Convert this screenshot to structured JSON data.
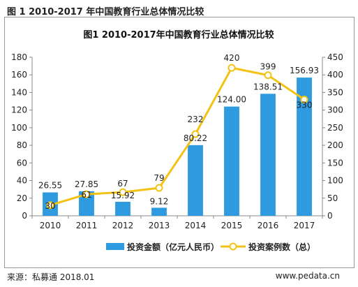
{
  "figure_title": "图 1 2010-2017 年中国教育行业总体情况比较",
  "source": "来源：私募通 2018.01",
  "site": "www.pedata.cn",
  "chart_data": {
    "type": "bar",
    "title": "图1 2010-2017年中国教育行业总体情况比较",
    "categories": [
      "2010",
      "2011",
      "2012",
      "2013",
      "2014",
      "2015",
      "2016",
      "2017"
    ],
    "series": [
      {
        "name": "投资金额（亿元人民币）",
        "type": "bar",
        "axis": "left",
        "color": "#2e9be0",
        "values": [
          26.55,
          27.85,
          15.92,
          9.12,
          80.22,
          124.0,
          138.51,
          156.93
        ],
        "labels": [
          "26.55",
          "27.85",
          "15.92",
          "9.12",
          "80.22",
          "124.00",
          "138.51",
          "156.93"
        ]
      },
      {
        "name": "投资案例数（总）",
        "type": "line",
        "axis": "right",
        "color": "#f2c314",
        "values": [
          30,
          61,
          67,
          79,
          232,
          420,
          399,
          330
        ],
        "labels": [
          "30",
          "61",
          "67",
          "79",
          "232",
          "420",
          "399",
          "330"
        ]
      }
    ],
    "y_left": {
      "min": 0,
      "max": 180,
      "ticks": [
        "0",
        "20",
        "40",
        "60",
        "80",
        "100",
        "120",
        "140",
        "160",
        "180"
      ]
    },
    "y_right": {
      "min": 0,
      "max": 450,
      "ticks": [
        "0",
        "50",
        "100",
        "150",
        "200",
        "250",
        "300",
        "350",
        "400",
        "450"
      ]
    },
    "grid": false,
    "legend_position": "bottom"
  }
}
